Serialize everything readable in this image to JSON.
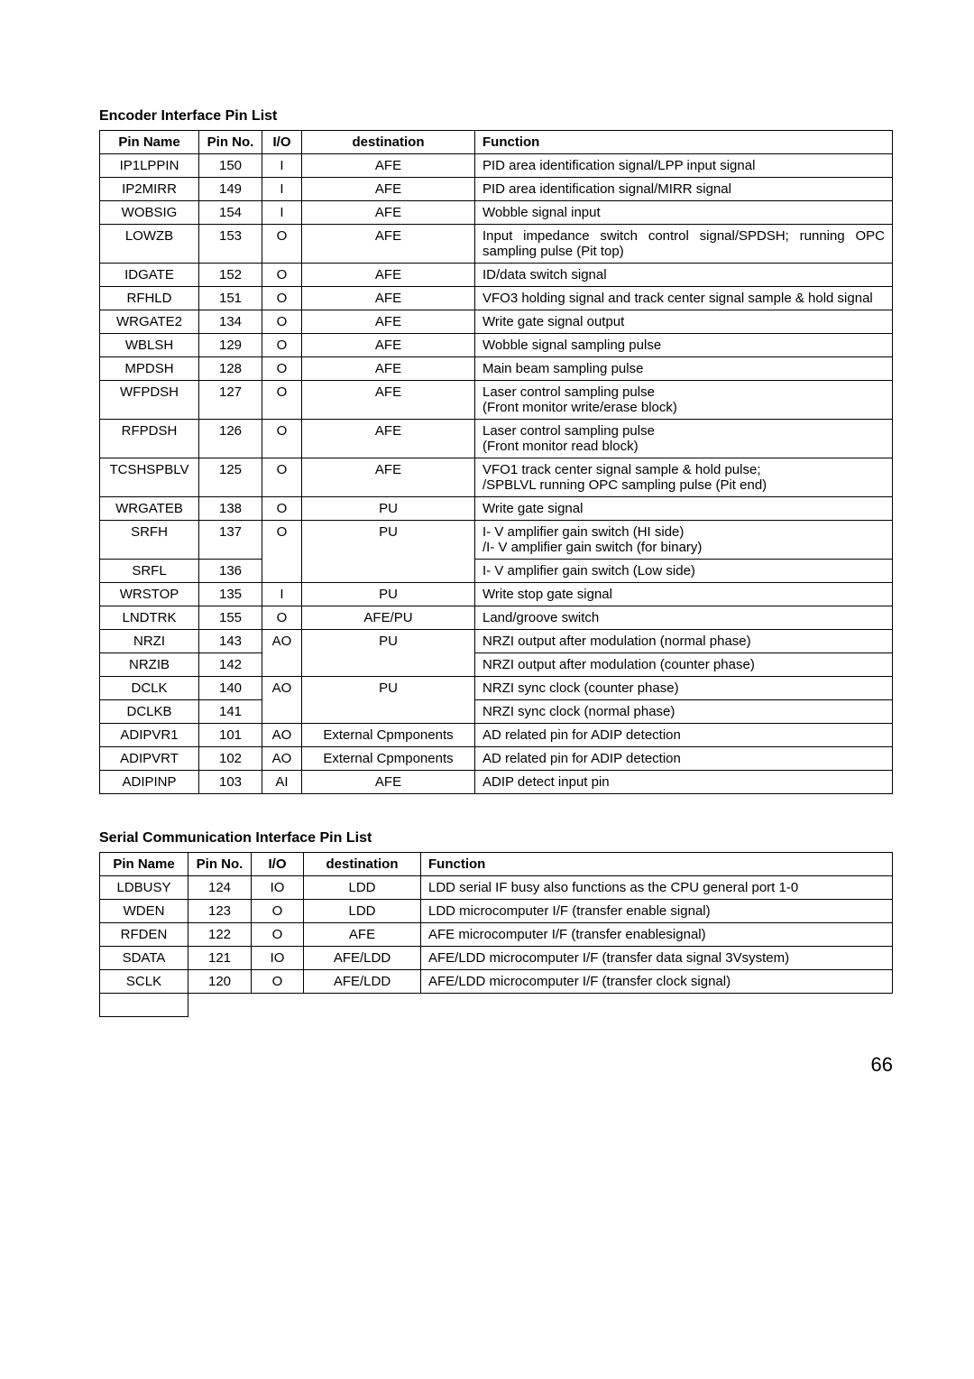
{
  "section1": {
    "title": "Encoder Interface Pin List",
    "headers": [
      "Pin Name",
      "Pin No.",
      "I/O",
      "destination",
      "Function"
    ],
    "rows": [
      {
        "cells": [
          "IP1LPPIN",
          "150",
          "I",
          "AFE",
          "PID area identification signal/LPP input signal"
        ],
        "merge": null
      },
      {
        "cells": [
          "IP2MIRR",
          "149",
          "I",
          "AFE",
          "PID area identification signal/MIRR signal"
        ],
        "merge": null
      },
      {
        "cells": [
          "WOBSIG",
          "154",
          "I",
          "AFE",
          "Wobble signal input"
        ],
        "merge": null
      },
      {
        "cells": [
          "LOWZB",
          "153",
          "O",
          "AFE",
          "Input impedance switch control signal/SPDSH; running OPC sampling pulse (Pit top)"
        ],
        "merge": null
      },
      {
        "cells": [
          "IDGATE",
          "152",
          "O",
          "AFE",
          "ID/data switch signal"
        ],
        "merge": null
      },
      {
        "cells": [
          "RFHLD",
          "151",
          "O",
          "AFE",
          "VFO3 holding signal and track center signal sample & hold signal"
        ],
        "merge": null
      },
      {
        "cells": [
          "WRGATE2",
          "134",
          "O",
          "AFE",
          "Write gate signal output"
        ],
        "merge": null
      },
      {
        "cells": [
          "WBLSH",
          "129",
          "O",
          "AFE",
          "Wobble signal sampling pulse"
        ],
        "merge": null
      },
      {
        "cells": [
          "MPDSH",
          "128",
          "O",
          "AFE",
          "Main beam sampling pulse"
        ],
        "merge": null
      },
      {
        "cells": [
          "WFPDSH",
          "127",
          "O",
          "AFE",
          "Laser control sampling pulse\n(Front monitor write/erase block)"
        ],
        "merge": null
      },
      {
        "cells": [
          "RFPDSH",
          "126",
          "O",
          "AFE",
          "Laser control sampling pulse\n(Front monitor read block)"
        ],
        "merge": null
      },
      {
        "cells": [
          "TCSHSPBLV",
          "125",
          "O",
          "AFE",
          "VFO1 track center signal sample & hold pulse;\n/SPBLVL running OPC sampling pulse (Pit end)"
        ],
        "merge": null
      },
      {
        "cells": [
          "WRGATEB",
          "138",
          "O",
          "PU",
          "Write gate signal"
        ],
        "merge": null
      },
      {
        "cells": [
          "SRFH",
          "137",
          "O",
          "PU",
          "I- V amplifier gain switch (HI side)\n/I- V amplifier gain switch (for binary)"
        ],
        "merge": "top",
        "span": 2
      },
      {
        "cells": [
          "SRFL",
          "136",
          "",
          "",
          "I- V amplifier gain switch (Low side)"
        ],
        "merge": "bottom"
      },
      {
        "cells": [
          "WRSTOP",
          "135",
          "I",
          "PU",
          "Write stop gate signal"
        ],
        "merge": null
      },
      {
        "cells": [
          "LNDTRK",
          "155",
          "O",
          "AFE/PU",
          "Land/groove switch"
        ],
        "merge": null
      },
      {
        "cells": [
          "NRZI",
          "143",
          "AO",
          "PU",
          "NRZI output after modulation (normal phase)"
        ],
        "merge": "top",
        "span": 2
      },
      {
        "cells": [
          "NRZIB",
          "142",
          "",
          "",
          "NRZI output after modulation (counter phase)"
        ],
        "merge": "bottom"
      },
      {
        "cells": [
          "DCLK",
          "140",
          "AO",
          "PU",
          "NRZI sync clock (counter phase)"
        ],
        "merge": "top",
        "span": 2
      },
      {
        "cells": [
          "DCLKB",
          "141",
          "",
          "",
          "NRZI sync clock (normal phase)"
        ],
        "merge": "bottom"
      },
      {
        "cells": [
          "ADIPVR1",
          "101",
          "AO",
          "External Cpmponents",
          "AD related pin for ADIP detection"
        ],
        "merge": null
      },
      {
        "cells": [
          "ADIPVRT",
          "102",
          "AO",
          "External Cpmponents",
          "AD related pin for ADIP detection"
        ],
        "merge": null
      },
      {
        "cells": [
          "ADIPINP",
          "103",
          "AI",
          "AFE",
          "ADIP detect input pin"
        ],
        "merge": null
      }
    ]
  },
  "section2": {
    "title": "Serial Communication Interface Pin List",
    "headers": [
      "Pin Name",
      "Pin No.",
      "I/O",
      "destination",
      "Function"
    ],
    "rows": [
      {
        "cells": [
          "LDBUSY",
          "124",
          "IO",
          "LDD",
          "LDD serial IF busy also functions as the CPU general port 1-0"
        ]
      },
      {
        "cells": [
          "WDEN",
          "123",
          "O",
          "LDD",
          "LDD microcomputer I/F (transfer enable signal)"
        ]
      },
      {
        "cells": [
          "RFDEN",
          "122",
          "O",
          "AFE",
          "AFE microcomputer I/F (transfer enablesignal)"
        ]
      },
      {
        "cells": [
          "SDATA",
          "121",
          "IO",
          "AFE/LDD",
          "AFE/LDD microcomputer I/F (transfer data signal  3Vsystem)"
        ]
      },
      {
        "cells": [
          "SCLK",
          "120",
          "O",
          "AFE/LDD",
          "AFE/LDD microcomputer I/F (transfer clock signal)"
        ],
        "trailing": true
      }
    ]
  },
  "pageNumber": "66"
}
